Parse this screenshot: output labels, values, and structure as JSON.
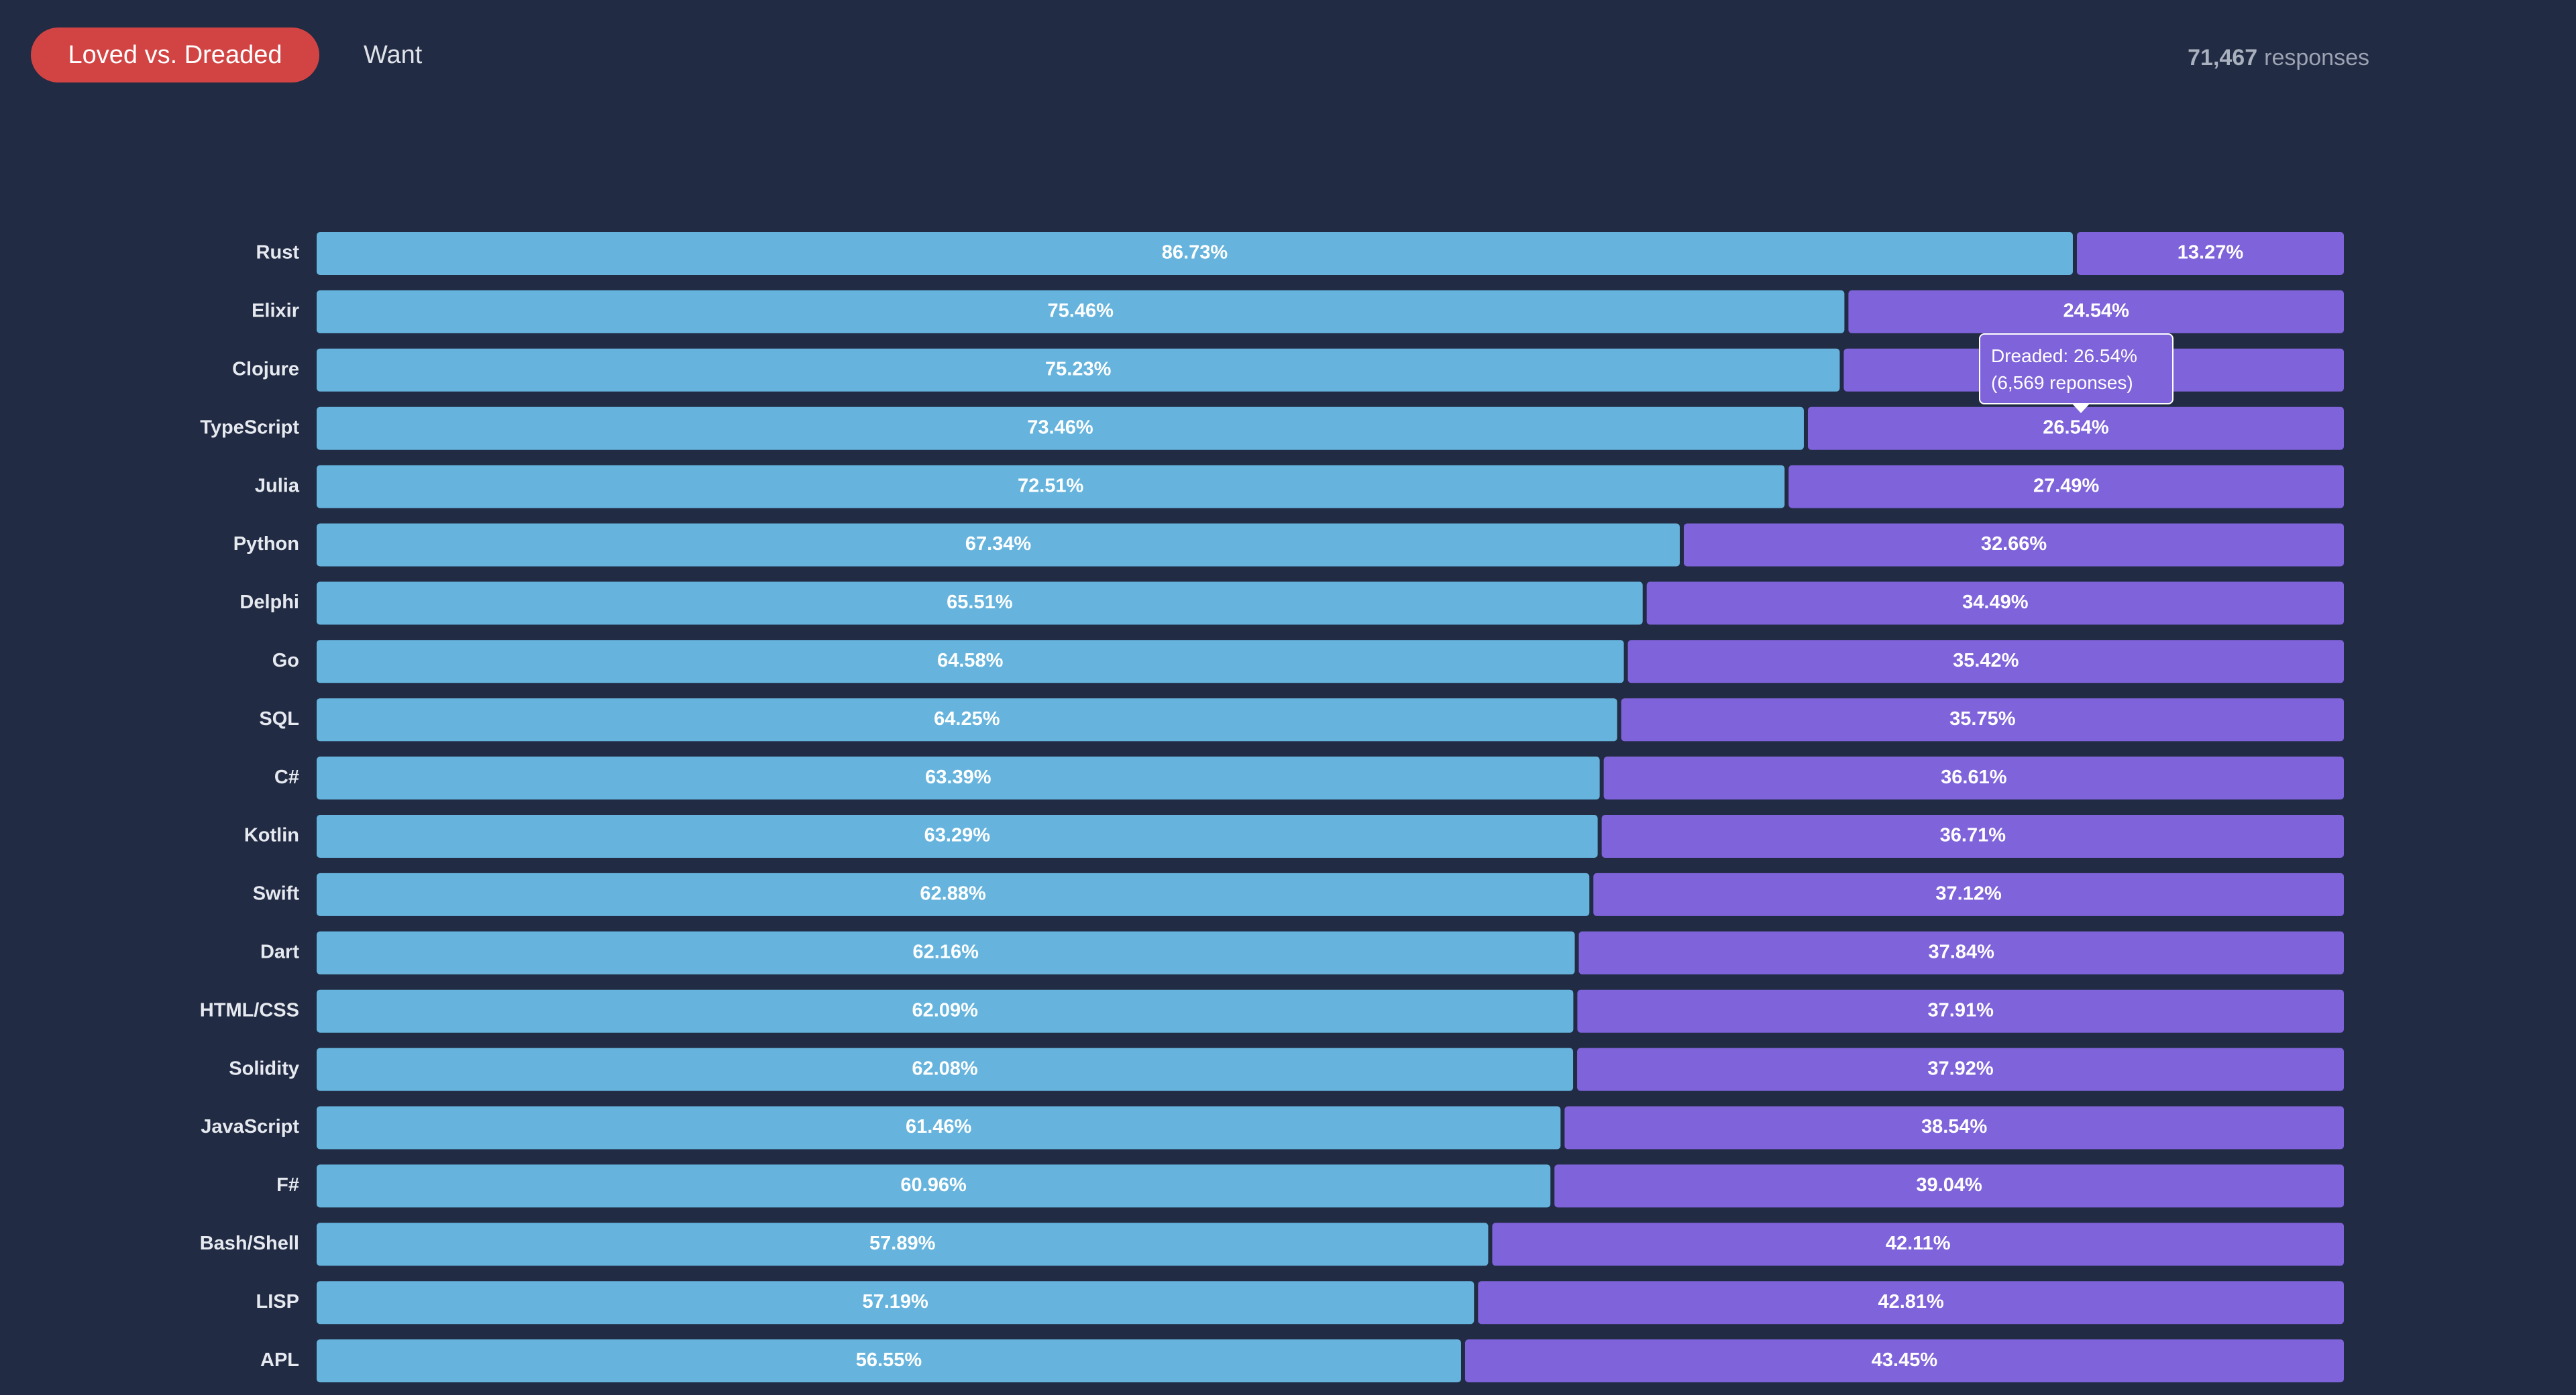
{
  "tabs": {
    "loved_dreaded": "Loved vs. Dreaded",
    "want": "Want"
  },
  "responses": {
    "count": "71,467",
    "label": "responses"
  },
  "tooltip": {
    "line1": "Dreaded: 26.54%",
    "line2": "(6,569 reponses)"
  },
  "colors": {
    "loved": "#66b4dd",
    "dreaded": "#7f63da",
    "background": "#212b43",
    "active_tab": "#d24444"
  },
  "chart_data": {
    "type": "bar",
    "stacked": true,
    "orientation": "horizontal",
    "categories": [
      "Rust",
      "Elixir",
      "Clojure",
      "TypeScript",
      "Julia",
      "Python",
      "Delphi",
      "Go",
      "SQL",
      "C#",
      "Kotlin",
      "Swift",
      "Dart",
      "HTML/CSS",
      "Solidity",
      "JavaScript",
      "F#",
      "Bash/Shell",
      "LISP",
      "APL"
    ],
    "series": [
      {
        "values": [
          86.73,
          75.46,
          75.23,
          73.46,
          72.51,
          67.34,
          65.51,
          64.58,
          64.25,
          63.39,
          63.29,
          62.88,
          62.16,
          62.09,
          62.08,
          61.46,
          60.96,
          57.89,
          57.19,
          56.55
        ],
        "labels": [
          "86.73%",
          "75.46%",
          "75.23%",
          "73.46%",
          "72.51%",
          "67.34%",
          "65.51%",
          "64.58%",
          "64.25%",
          "63.39%",
          "63.29%",
          "62.88%",
          "62.16%",
          "62.09%",
          "62.08%",
          "61.46%",
          "60.96%",
          "57.89%",
          "57.19%",
          "56.55%"
        ]
      },
      {
        "values": [
          13.27,
          24.54,
          24.77,
          26.54,
          27.49,
          32.66,
          34.49,
          35.42,
          35.75,
          36.61,
          36.71,
          37.12,
          37.84,
          37.91,
          37.92,
          38.54,
          39.04,
          42.11,
          42.81,
          43.45
        ],
        "labels": [
          "13.27%",
          "24.54%",
          "",
          "26.54%",
          "27.49%",
          "32.66%",
          "34.49%",
          "35.42%",
          "35.75%",
          "36.61%",
          "36.71%",
          "37.12%",
          "37.84%",
          "37.91%",
          "37.92%",
          "38.54%",
          "39.04%",
          "42.11%",
          "42.81%",
          "43.45%"
        ]
      }
    ],
    "xlim": [
      0,
      100
    ],
    "grid": false,
    "legend": "none"
  }
}
